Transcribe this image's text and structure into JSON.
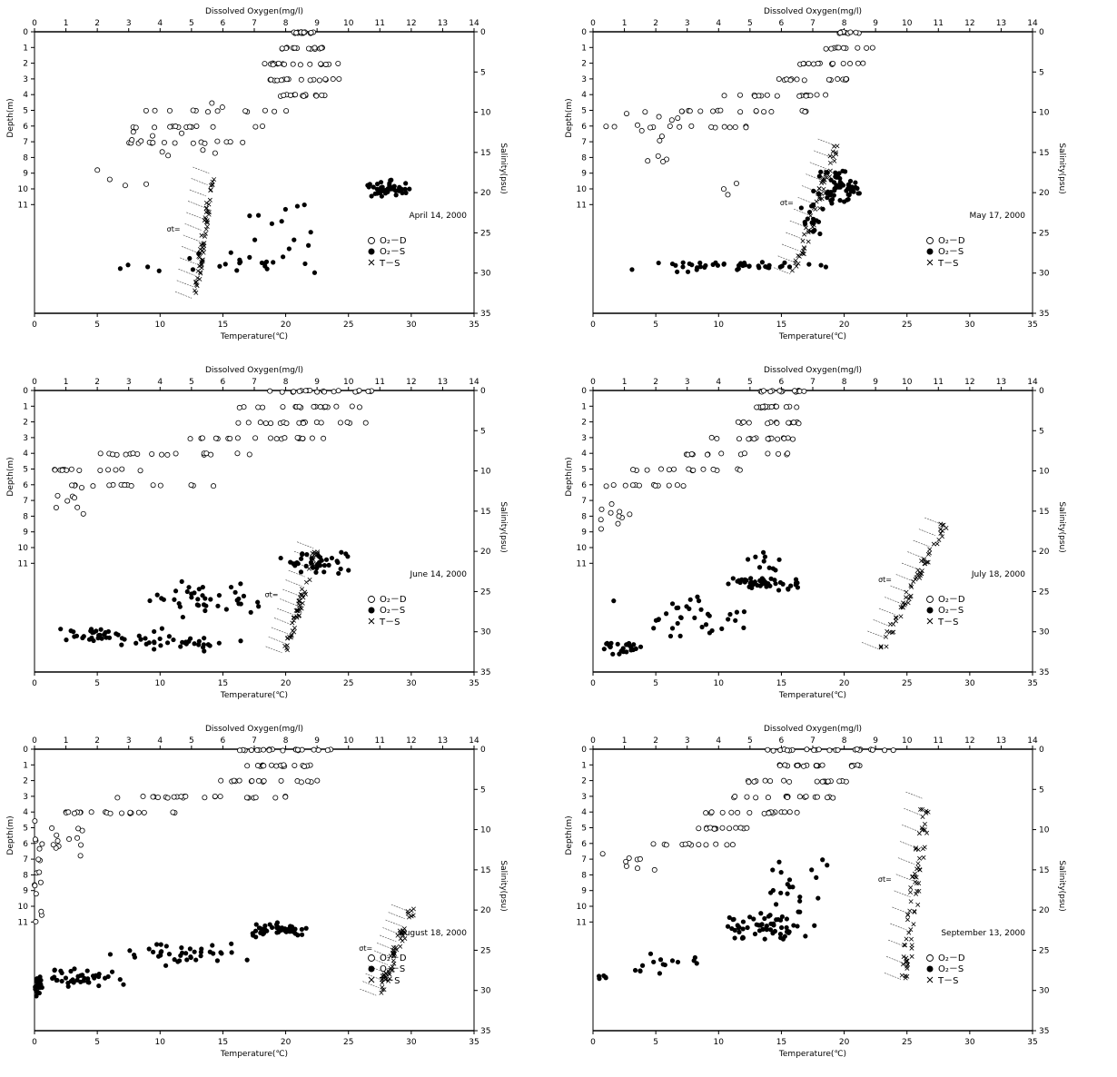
{
  "chart_data": [
    {
      "type": "scatter",
      "date_label": "April 14, 2000",
      "top_axis_label": "Dissolved Oxygen(mg/l)",
      "x_axis_label": "Temperature(℃)",
      "left_axis_label": "Depth(m)",
      "right_axis_label": "Salinity(psu)",
      "do_ticks": [
        "0",
        "1",
        "2",
        "3",
        "4",
        "5",
        "6",
        "7",
        "8",
        "9",
        "10",
        "11",
        "12",
        "13",
        "14"
      ],
      "temp_ticks": [
        "0",
        "5",
        "10",
        "15",
        "20",
        "25",
        "30",
        "35"
      ],
      "depth_ticks": [
        "0",
        "1",
        "2",
        "3",
        "4",
        "5",
        "6",
        "7",
        "8",
        "9",
        "10",
        "11"
      ],
      "sal_ticks": [
        "0",
        "5",
        "10",
        "15",
        "20",
        "25",
        "30",
        "35"
      ],
      "sigma_label": "σt=",
      "legend": {
        "do_depth": "O₂－D",
        "do_sal": "O₂－S",
        "temp_sal": "T－S"
      },
      "o2_depth": {
        "cols": [
          {
            "do": 8.6,
            "depth_min": 0,
            "depth_max": 0.1,
            "n": 18,
            "spread": 0.35
          },
          {
            "do": 8.6,
            "depth_min": 1,
            "depth_max": 1.1,
            "n": 16,
            "spread": 1.0
          },
          {
            "do": 8.5,
            "depth_min": 2,
            "depth_max": 2.1,
            "n": 18,
            "spread": 1.2
          },
          {
            "do": 8.6,
            "depth_min": 3,
            "depth_max": 3.1,
            "n": 16,
            "spread": 1.1
          },
          {
            "do": 8.5,
            "depth_min": 4,
            "depth_max": 4.1,
            "n": 14,
            "spread": 1.0
          },
          {
            "do": 6.0,
            "depth_min": 5,
            "depth_max": 5.1,
            "n": 12,
            "spread": 2.5
          },
          {
            "do": 5.6,
            "depth_min": 6,
            "depth_max": 6.1,
            "n": 14,
            "spread": 2.5
          },
          {
            "do": 5.0,
            "depth_min": 7,
            "depth_max": 7.1,
            "n": 12,
            "spread": 2.0
          },
          {
            "do": 4.5,
            "depth_min": 4,
            "depth_max": 8,
            "n": 14,
            "spread": 1.5
          },
          {
            "do": 3.2,
            "depth_min": 8.5,
            "depth_max": 10,
            "n": 4,
            "spread": 1.4
          }
        ]
      },
      "o2_salinity": {
        "clusters": [
          {
            "do": 11.3,
            "sal": 19.5,
            "n": 45,
            "do_spread": 0.8,
            "sal_spread": 1.2
          },
          {
            "do": 7.0,
            "sal": 28.5,
            "n": 20,
            "do_spread": 2.8,
            "sal_spread": 1.5
          },
          {
            "do": 8.0,
            "sal": 24.0,
            "n": 12,
            "do_spread": 1.3,
            "sal_spread": 4.0
          },
          {
            "do": 3.5,
            "sal": 29.5,
            "n": 4,
            "do_spread": 1.3,
            "sal_spread": 1.0
          }
        ]
      },
      "t_s": {
        "temp_min": 12.8,
        "temp_max": 14.2,
        "sal_min": 17.5,
        "sal_max": 33.0,
        "n": 60,
        "spread": 0.4
      }
    },
    {
      "type": "scatter",
      "date_label": "May 17, 2000",
      "top_axis_label": "Dissolved Oxygen(mg/l)",
      "x_axis_label": "Temperature(℃)",
      "left_axis_label": "Depth(m)",
      "right_axis_label": "Salinity(psu)",
      "do_ticks": [
        "0",
        "1",
        "2",
        "3",
        "4",
        "5",
        "6",
        "7",
        "8",
        "9",
        "10",
        "11",
        "12",
        "13",
        "14"
      ],
      "temp_ticks": [
        "0",
        "5",
        "10",
        "15",
        "20",
        "25",
        "30",
        "35"
      ],
      "depth_ticks": [
        "0",
        "1",
        "2",
        "3",
        "4",
        "5",
        "6",
        "7",
        "8",
        "9",
        "10",
        "11"
      ],
      "sal_ticks": [
        "0",
        "5",
        "10",
        "15",
        "20",
        "25",
        "30",
        "35"
      ],
      "sigma_label": "σt=",
      "legend": {
        "do_depth": "O₂－D",
        "do_sal": "O₂－S",
        "temp_sal": "T－S"
      },
      "o2_depth": {
        "cols": [
          {
            "do": 8.2,
            "depth_min": 0,
            "depth_max": 0.1,
            "n": 10,
            "spread": 0.35
          },
          {
            "do": 8.2,
            "depth_min": 1,
            "depth_max": 1.1,
            "n": 10,
            "spread": 0.8
          },
          {
            "do": 7.5,
            "depth_min": 2,
            "depth_max": 2.1,
            "n": 14,
            "spread": 1.2
          },
          {
            "do": 7.0,
            "depth_min": 3,
            "depth_max": 3.1,
            "n": 14,
            "spread": 1.3
          },
          {
            "do": 5.8,
            "depth_min": 4,
            "depth_max": 4.1,
            "n": 16,
            "spread": 1.9
          },
          {
            "do": 4.0,
            "depth_min": 5,
            "depth_max": 5.1,
            "n": 18,
            "spread": 2.8
          },
          {
            "do": 3.0,
            "depth_min": 6,
            "depth_max": 6.1,
            "n": 14,
            "spread": 2.6
          },
          {
            "do": 1.8,
            "depth_min": 5,
            "depth_max": 8.5,
            "n": 12,
            "spread": 1.0
          },
          {
            "do": 4.3,
            "depth_min": 9,
            "depth_max": 11,
            "n": 3,
            "spread": 1.2
          }
        ]
      },
      "o2_salinity": {
        "clusters": [
          {
            "do": 7.9,
            "sal": 19.0,
            "n": 55,
            "do_spread": 0.8,
            "sal_spread": 2.5
          },
          {
            "do": 4.5,
            "sal": 29.2,
            "n": 45,
            "do_spread": 3.3,
            "sal_spread": 0.8
          },
          {
            "do": 7.0,
            "sal": 24.0,
            "n": 18,
            "do_spread": 0.6,
            "sal_spread": 4.5
          }
        ]
      },
      "t_s": {
        "temp_min": 16.0,
        "temp_max": 19.5,
        "sal_min": 14.0,
        "sal_max": 30.0,
        "n": 60,
        "spread": 0.6
      }
    },
    {
      "type": "scatter",
      "date_label": "June 14, 2000",
      "top_axis_label": "Dissolved Oxygen(mg/l)",
      "x_axis_label": "Temperature(℃)",
      "left_axis_label": "Depth(m)",
      "right_axis_label": "Salinity(psu)",
      "do_ticks": [
        "0",
        "1",
        "2",
        "3",
        "4",
        "5",
        "6",
        "7",
        "8",
        "9",
        "10",
        "11",
        "12",
        "13",
        "14"
      ],
      "temp_ticks": [
        "0",
        "5",
        "10",
        "15",
        "20",
        "25",
        "30",
        "35"
      ],
      "depth_ticks": [
        "0",
        "1",
        "2",
        "3",
        "4",
        "5",
        "6",
        "7",
        "8",
        "9",
        "10",
        "11"
      ],
      "sal_ticks": [
        "0",
        "5",
        "10",
        "15",
        "20",
        "25",
        "30",
        "35"
      ],
      "sigma_label": "σt=",
      "legend": {
        "do_depth": "O₂－D",
        "do_sal": "O₂－S",
        "temp_sal": "T－S"
      },
      "o2_depth": {
        "cols": [
          {
            "do": 9.0,
            "depth_min": 0,
            "depth_max": 0.1,
            "n": 20,
            "spread": 1.8
          },
          {
            "do": 8.5,
            "depth_min": 1,
            "depth_max": 1.1,
            "n": 18,
            "spread": 2.0
          },
          {
            "do": 8.5,
            "depth_min": 2,
            "depth_max": 2.1,
            "n": 18,
            "spread": 2.2
          },
          {
            "do": 7.0,
            "depth_min": 3,
            "depth_max": 3.1,
            "n": 20,
            "spread": 2.7
          },
          {
            "do": 4.5,
            "depth_min": 4,
            "depth_max": 4.1,
            "n": 18,
            "spread": 2.5
          },
          {
            "do": 2.0,
            "depth_min": 5,
            "depth_max": 5.1,
            "n": 14,
            "spread": 1.6
          },
          {
            "do": 3.5,
            "depth_min": 6,
            "depth_max": 6.1,
            "n": 14,
            "spread": 2.5
          },
          {
            "do": 1.0,
            "depth_min": 6,
            "depth_max": 8.5,
            "n": 10,
            "spread": 0.6
          }
        ]
      },
      "o2_salinity": {
        "clusters": [
          {
            "do": 8.8,
            "sal": 21.5,
            "n": 40,
            "do_spread": 1.3,
            "sal_spread": 1.5
          },
          {
            "do": 5.5,
            "sal": 26.0,
            "n": 40,
            "do_spread": 2.8,
            "sal_spread": 2.5
          },
          {
            "do": 2.5,
            "sal": 30.5,
            "n": 40,
            "do_spread": 2.2,
            "sal_spread": 1.3
          },
          {
            "do": 5.0,
            "sal": 31.5,
            "n": 25,
            "do_spread": 2.0,
            "sal_spread": 1.0
          }
        ]
      },
      "t_s": {
        "temp_min": 20.0,
        "temp_max": 22.5,
        "sal_min": 19.5,
        "sal_max": 32.5,
        "n": 60,
        "spread": 0.5
      }
    },
    {
      "type": "scatter",
      "date_label": "July 18, 2000",
      "top_axis_label": "Dissolved Oxygen(mg/l)",
      "x_axis_label": "Temperature(℃)",
      "left_axis_label": "Depth(m)",
      "right_axis_label": "Salinity(psu)",
      "do_ticks": [
        "0",
        "1",
        "2",
        "3",
        "4",
        "5",
        "6",
        "7",
        "8",
        "9",
        "10",
        "11",
        "12",
        "13",
        "14"
      ],
      "temp_ticks": [
        "0",
        "5",
        "10",
        "15",
        "20",
        "25",
        "30",
        "35"
      ],
      "depth_ticks": [
        "0",
        "1",
        "2",
        "3",
        "4",
        "5",
        "6",
        "7",
        "8",
        "9",
        "10",
        "11"
      ],
      "sal_ticks": [
        "0",
        "5",
        "10",
        "15",
        "20",
        "25",
        "30",
        "35"
      ],
      "sigma_label": "σt=",
      "legend": {
        "do_depth": "O₂－D",
        "do_sal": "O₂－S",
        "temp_sal": "T－S"
      },
      "o2_depth": {
        "cols": [
          {
            "do": 6.0,
            "depth_min": 0,
            "depth_max": 0.1,
            "n": 14,
            "spread": 0.8
          },
          {
            "do": 5.9,
            "depth_min": 1,
            "depth_max": 1.1,
            "n": 16,
            "spread": 0.7
          },
          {
            "do": 5.6,
            "depth_min": 2,
            "depth_max": 2.1,
            "n": 14,
            "spread": 1.0
          },
          {
            "do": 5.0,
            "depth_min": 3,
            "depth_max": 3.1,
            "n": 16,
            "spread": 1.5
          },
          {
            "do": 4.5,
            "depth_min": 4,
            "depth_max": 4.1,
            "n": 14,
            "spread": 1.7
          },
          {
            "do": 3.0,
            "depth_min": 5,
            "depth_max": 5.1,
            "n": 14,
            "spread": 2.0
          },
          {
            "do": 1.5,
            "depth_min": 6,
            "depth_max": 6.1,
            "n": 12,
            "spread": 1.5
          },
          {
            "do": 0.8,
            "depth_min": 6.5,
            "depth_max": 9.5,
            "n": 10,
            "spread": 0.7
          }
        ]
      },
      "o2_salinity": {
        "clusters": [
          {
            "do": 5.5,
            "sal": 24.0,
            "n": 50,
            "do_spread": 1.3,
            "sal_spread": 1.0
          },
          {
            "do": 3.0,
            "sal": 28.0,
            "n": 35,
            "do_spread": 2.5,
            "sal_spread": 3.0
          },
          {
            "do": 1.0,
            "sal": 32.0,
            "n": 25,
            "do_spread": 1.0,
            "sal_spread": 1.0
          },
          {
            "do": 5.5,
            "sal": 21.0,
            "n": 10,
            "do_spread": 1.2,
            "sal_spread": 2.0
          }
        ]
      },
      "t_s": {
        "temp_min": 23.0,
        "temp_max": 28.0,
        "sal_min": 16.5,
        "sal_max": 32.0,
        "n": 60,
        "spread": 0.5
      }
    },
    {
      "type": "scatter",
      "date_label": "August 18, 2000",
      "top_axis_label": "Dissolved Oxygen(mg/l)",
      "x_axis_label": "Temperature(℃)",
      "left_axis_label": "Depth(m)",
      "right_axis_label": "Salinity(psu)",
      "do_ticks": [
        "0",
        "1",
        "2",
        "3",
        "4",
        "5",
        "6",
        "7",
        "8",
        "9",
        "10",
        "11",
        "12",
        "13",
        "14"
      ],
      "temp_ticks": [
        "0",
        "5",
        "10",
        "15",
        "20",
        "25",
        "30",
        "35"
      ],
      "depth_ticks": [
        "0",
        "1",
        "2",
        "3",
        "4",
        "5",
        "6",
        "7",
        "8",
        "9",
        "10",
        "11"
      ],
      "sal_ticks": [
        "0",
        "5",
        "10",
        "15",
        "20",
        "25",
        "30",
        "35"
      ],
      "sigma_label": "σt=",
      "legend": {
        "do_depth": "O₂－D",
        "do_sal": "O₂－S",
        "temp_sal": "T－S"
      },
      "o2_depth": {
        "cols": [
          {
            "do": 8.0,
            "depth_min": 0,
            "depth_max": 0.1,
            "n": 20,
            "spread": 1.6
          },
          {
            "do": 8.0,
            "depth_min": 1,
            "depth_max": 1.1,
            "n": 18,
            "spread": 1.4
          },
          {
            "do": 7.5,
            "depth_min": 2,
            "depth_max": 2.1,
            "n": 16,
            "spread": 1.7
          },
          {
            "do": 5.0,
            "depth_min": 3,
            "depth_max": 3.1,
            "n": 24,
            "spread": 3.0
          },
          {
            "do": 3.0,
            "depth_min": 4,
            "depth_max": 4.1,
            "n": 20,
            "spread": 2.6
          },
          {
            "do": 0.8,
            "depth_min": 5,
            "depth_max": 7.5,
            "n": 14,
            "spread": 0.8
          },
          {
            "do": 0.1,
            "depth_min": 4.5,
            "depth_max": 11,
            "n": 14,
            "spread": 0.15
          }
        ]
      },
      "o2_salinity": {
        "clusters": [
          {
            "do": 7.8,
            "sal": 22.5,
            "n": 50,
            "do_spread": 1.2,
            "sal_spread": 1.0
          },
          {
            "do": 4.5,
            "sal": 25.5,
            "n": 40,
            "do_spread": 2.5,
            "sal_spread": 1.5
          },
          {
            "do": 1.5,
            "sal": 28.5,
            "n": 40,
            "do_spread": 1.5,
            "sal_spread": 1.5
          },
          {
            "do": 0.1,
            "sal": 29.5,
            "n": 20,
            "do_spread": 0.15,
            "sal_spread": 1.5
          }
        ]
      },
      "t_s": {
        "temp_min": 27.5,
        "temp_max": 30.0,
        "sal_min": 20.0,
        "sal_max": 30.5,
        "n": 60,
        "spread": 0.6
      }
    },
    {
      "type": "scatter",
      "date_label": "September 13, 2000",
      "top_axis_label": "Dissolved Oxygen(mg/l)",
      "x_axis_label": "Temperature(℃)",
      "left_axis_label": "Depth(m)",
      "right_axis_label": "Salinity(psu)",
      "do_ticks": [
        "0",
        "1",
        "2",
        "3",
        "4",
        "5",
        "6",
        "7",
        "8",
        "9",
        "10",
        "11",
        "12",
        "13",
        "14"
      ],
      "temp_ticks": [
        "0",
        "5",
        "10",
        "15",
        "20",
        "25",
        "30",
        "35"
      ],
      "depth_ticks": [
        "0",
        "1",
        "2",
        "3",
        "4",
        "5",
        "6",
        "7",
        "8",
        "9",
        "10",
        "11"
      ],
      "sal_ticks": [
        "0",
        "5",
        "10",
        "15",
        "20",
        "25",
        "30",
        "35"
      ],
      "sigma_label": "σt=",
      "legend": {
        "do_depth": "O₂－D",
        "do_sal": "O₂－S",
        "temp_sal": "T－S"
      },
      "o2_depth": {
        "cols": [
          {
            "do": 7.5,
            "depth_min": 0,
            "depth_max": 0.1,
            "n": 22,
            "spread": 2.2
          },
          {
            "do": 7.2,
            "depth_min": 1,
            "depth_max": 1.1,
            "n": 20,
            "spread": 1.4
          },
          {
            "do": 6.5,
            "depth_min": 2,
            "depth_max": 2.1,
            "n": 18,
            "spread": 1.6
          },
          {
            "do": 6.2,
            "depth_min": 3,
            "depth_max": 3.1,
            "n": 18,
            "spread": 1.8
          },
          {
            "do": 5.0,
            "depth_min": 4,
            "depth_max": 4.1,
            "n": 18,
            "spread": 1.6
          },
          {
            "do": 4.2,
            "depth_min": 5,
            "depth_max": 5.1,
            "n": 14,
            "spread": 1.0
          },
          {
            "do": 3.5,
            "depth_min": 6,
            "depth_max": 6.1,
            "n": 12,
            "spread": 1.8
          },
          {
            "do": 1.2,
            "depth_min": 6.5,
            "depth_max": 8,
            "n": 8,
            "spread": 0.9
          }
        ]
      },
      "o2_salinity": {
        "clusters": [
          {
            "do": 5.5,
            "sal": 22.0,
            "n": 60,
            "do_spread": 1.8,
            "sal_spread": 2.0
          },
          {
            "do": 6.5,
            "sal": 17.0,
            "n": 20,
            "do_spread": 1.2,
            "sal_spread": 4.0
          },
          {
            "do": 2.0,
            "sal": 26.5,
            "n": 15,
            "do_spread": 1.5,
            "sal_spread": 1.5
          },
          {
            "do": 0.3,
            "sal": 28.5,
            "n": 5,
            "do_spread": 0.4,
            "sal_spread": 0.6
          }
        ]
      },
      "t_s": {
        "temp_min": 24.8,
        "temp_max": 26.5,
        "sal_min": 6.0,
        "sal_max": 28.5,
        "n": 70,
        "spread": 0.8
      }
    }
  ]
}
